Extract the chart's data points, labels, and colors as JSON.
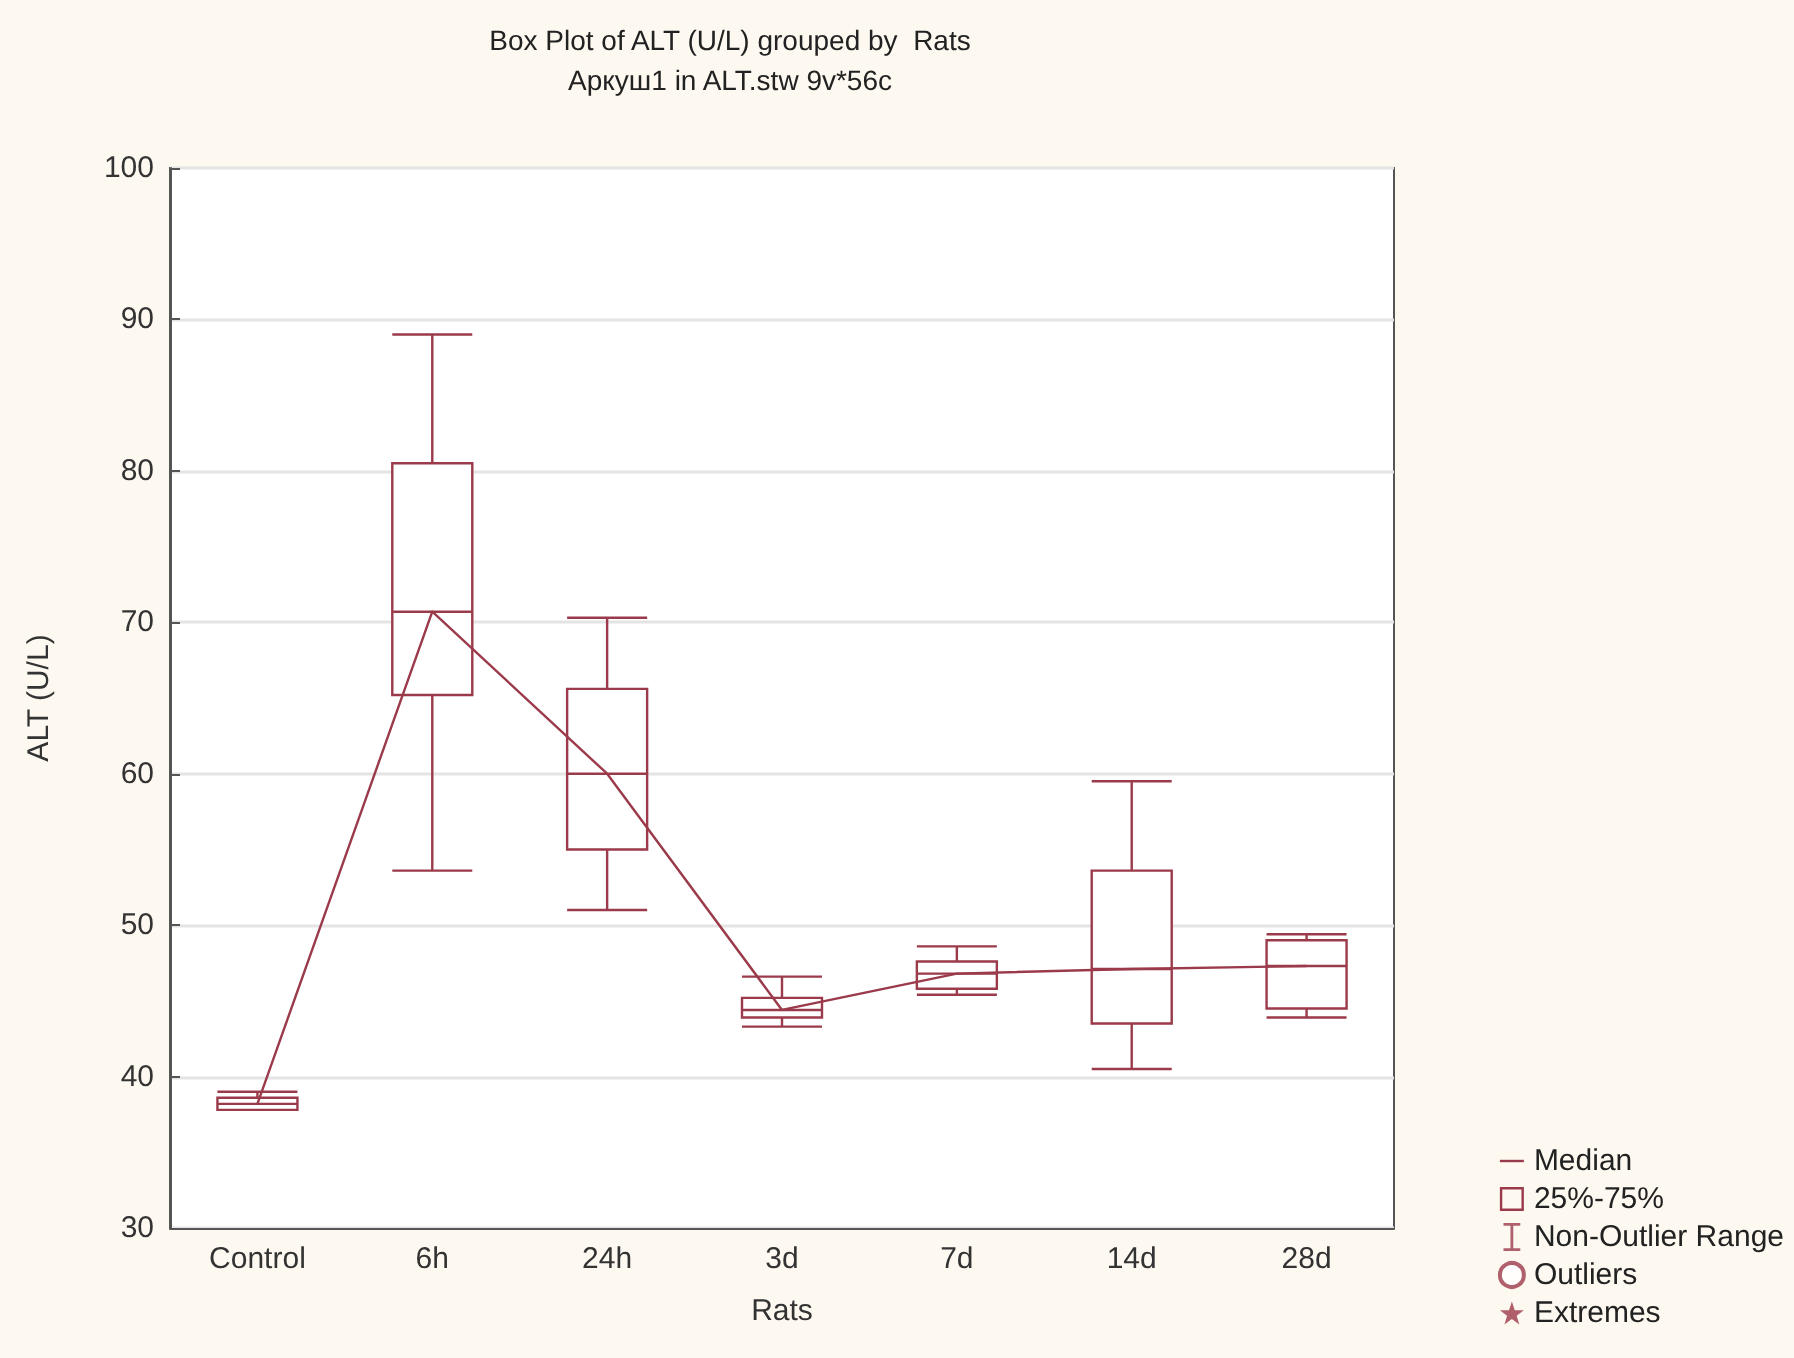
{
  "chart_data": {
    "type": "box",
    "title": "Box Plot of ALT (U/L) grouped by  Rats",
    "subtitle": "Аркуш1 in ALT.stw 9v*56c",
    "xlabel": "Rats",
    "ylabel": "ALT (U/L)",
    "categories": [
      "Control",
      "6h",
      "24h",
      "3d",
      "7d",
      "14d",
      "28d"
    ],
    "ylim": [
      30,
      100
    ],
    "yticks": [
      30,
      40,
      50,
      60,
      70,
      80,
      90,
      100
    ],
    "grid": "y",
    "legend": "bottom right",
    "series": [
      {
        "name": "Median",
        "type": "line",
        "color": "#9b3a4a",
        "marker": "none",
        "values": [
          38.2,
          70.7,
          60.0,
          44.4,
          46.8,
          47.1,
          47.3
        ]
      },
      {
        "name": "25%-75%",
        "color": "#9b3a4a",
        "boxes": [
          {
            "low": 37.8,
            "q1": 37.8,
            "median": 38.2,
            "q3": 38.6,
            "high": 39.0
          },
          {
            "low": 53.6,
            "q1": 65.2,
            "median": 70.7,
            "q3": 80.5,
            "high": 89.0
          },
          {
            "low": 51.0,
            "q1": 55.0,
            "median": 60.0,
            "q3": 65.6,
            "high": 70.3
          },
          {
            "low": 43.3,
            "q1": 43.9,
            "median": 44.4,
            "q3": 45.2,
            "high": 46.6
          },
          {
            "low": 45.4,
            "q1": 45.8,
            "median": 46.8,
            "q3": 47.6,
            "high": 48.6
          },
          {
            "low": 40.5,
            "q1": 43.5,
            "median": 47.1,
            "q3": 53.6,
            "high": 59.5
          },
          {
            "low": 43.9,
            "q1": 44.5,
            "median": 47.3,
            "q3": 49.0,
            "high": 49.4
          }
        ]
      },
      {
        "name": "Non-Outlier Range",
        "type": "scatter",
        "color": "#9b3a4a",
        "marker": "whisker",
        "values": [
          null,
          null,
          null,
          null,
          null,
          null,
          null
        ]
      },
      {
        "name": "Outliers",
        "type": "scatter",
        "color": "#9b3a4a",
        "marker": "circle",
        "values": [
          null,
          null,
          null,
          null,
          null,
          null,
          null
        ]
      },
      {
        "name": "Extremes",
        "type": "scatter",
        "color": "#9b3a4a",
        "marker": "star",
        "values": [
          null,
          null,
          null,
          null,
          null,
          null,
          null
        ]
      }
    ]
  }
}
